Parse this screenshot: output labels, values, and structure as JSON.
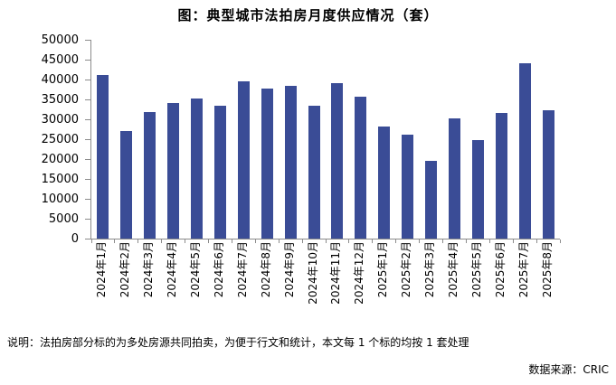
{
  "header": {
    "title": "图：典型城市法拍房月度供应情况（套）"
  },
  "footer": {
    "note": "说明：法拍房部分标的为多处房源共同拍卖，为便于行文和统计，本文每 1 个标的均按 1 套处理",
    "source": "数据来源：CRIC"
  },
  "chart_data": {
    "type": "bar",
    "title": "图：典型城市法拍房月度供应情况（套）",
    "categories": [
      "2024年1月",
      "2024年2月",
      "2024年3月",
      "2024年4月",
      "2024年5月",
      "2024年6月",
      "2024年7月",
      "2024年8月",
      "2024年9月",
      "2024年10月",
      "2024年11月",
      "2024年12月",
      "2025年1月",
      "2025年2月",
      "2025年3月",
      "2025年4月",
      "2025年5月",
      "2025年6月",
      "2025年7月",
      "2025年8月"
    ],
    "values": [
      41200,
      27000,
      31900,
      34000,
      35300,
      33500,
      39500,
      37700,
      38300,
      33400,
      39000,
      35600,
      28200,
      26200,
      19500,
      30300,
      24800,
      31700,
      44100,
      32200
    ],
    "xlabel": "",
    "ylabel": "",
    "ylim": [
      0,
      50000
    ],
    "yticks": [
      0,
      5000,
      10000,
      15000,
      20000,
      25000,
      30000,
      35000,
      40000,
      45000,
      50000
    ],
    "grid": false,
    "legend": "none",
    "bar_color": "#3A4C96",
    "axis_color": "#8C8C8C",
    "text_color": "#000000"
  }
}
